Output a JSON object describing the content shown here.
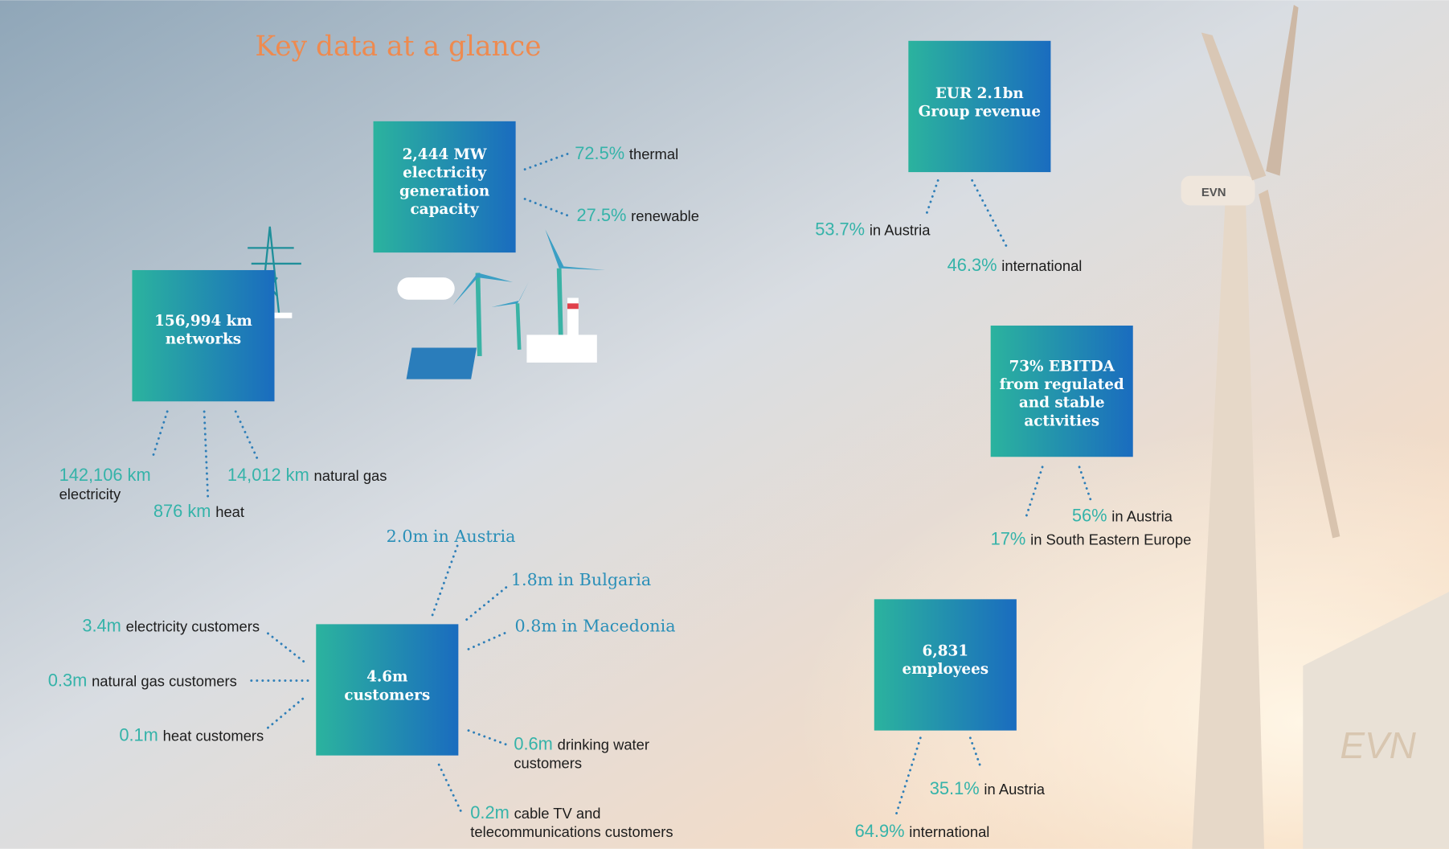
{
  "title": "Key data at a glance",
  "boxes": [
    {
      "lines": [
        "2,444 MW",
        "electricity",
        "generation",
        "capacity"
      ],
      "items": [
        {
          "value": "72.5%",
          "label": [
            "thermal"
          ]
        },
        {
          "value": "27.5%",
          "label": [
            "renewable"
          ]
        }
      ]
    },
    {
      "lines": [
        "156,994 km",
        "networks"
      ],
      "items": [
        {
          "value": "142,106 km",
          "label": [
            "",
            "electricity"
          ]
        },
        {
          "value": "876 km",
          "label": [
            "heat"
          ]
        },
        {
          "value": "14,012 km",
          "label": [
            "natural gas"
          ]
        }
      ]
    },
    {
      "lines": [
        "EUR 2.1bn",
        "Group revenue"
      ],
      "items": [
        {
          "value": "53.7%",
          "label": [
            "in Austria"
          ]
        },
        {
          "value": "46.3%",
          "label": [
            "international"
          ]
        }
      ]
    },
    {
      "lines": [
        "73% EBITDA",
        "from regulated",
        "and stable",
        "activities"
      ],
      "items": [
        {
          "value": "56%",
          "label": [
            "in Austria"
          ]
        },
        {
          "value": "17%",
          "label": [
            "in South Eastern Europe"
          ]
        }
      ]
    },
    {
      "lines": [
        "4.6m",
        "customers"
      ],
      "items": [
        {
          "value": "3.4m",
          "label": [
            "electricity customers"
          ]
        },
        {
          "value": "0.3m",
          "label": [
            "natural gas customers"
          ]
        },
        {
          "value": "0.1m",
          "label": [
            "heat customers"
          ]
        },
        {
          "value": "2.0m",
          "label": [
            "in Austria"
          ]
        },
        {
          "value": "1.8m",
          "label": [
            "in Bulgaria"
          ]
        },
        {
          "value": "0.8m",
          "label": [
            "in Macedonia"
          ]
        },
        {
          "value": "0.6m",
          "label": [
            "drinking water",
            "customers"
          ]
        },
        {
          "value": "0.2m",
          "label": [
            "cable TV and",
            "telecommunications customers"
          ]
        }
      ]
    },
    {
      "lines": [
        "6,831",
        "employees"
      ],
      "items": [
        {
          "value": "35.1%",
          "label": [
            "in Austria"
          ]
        },
        {
          "value": "64.9%",
          "label": [
            "international"
          ]
        }
      ]
    }
  ]
}
